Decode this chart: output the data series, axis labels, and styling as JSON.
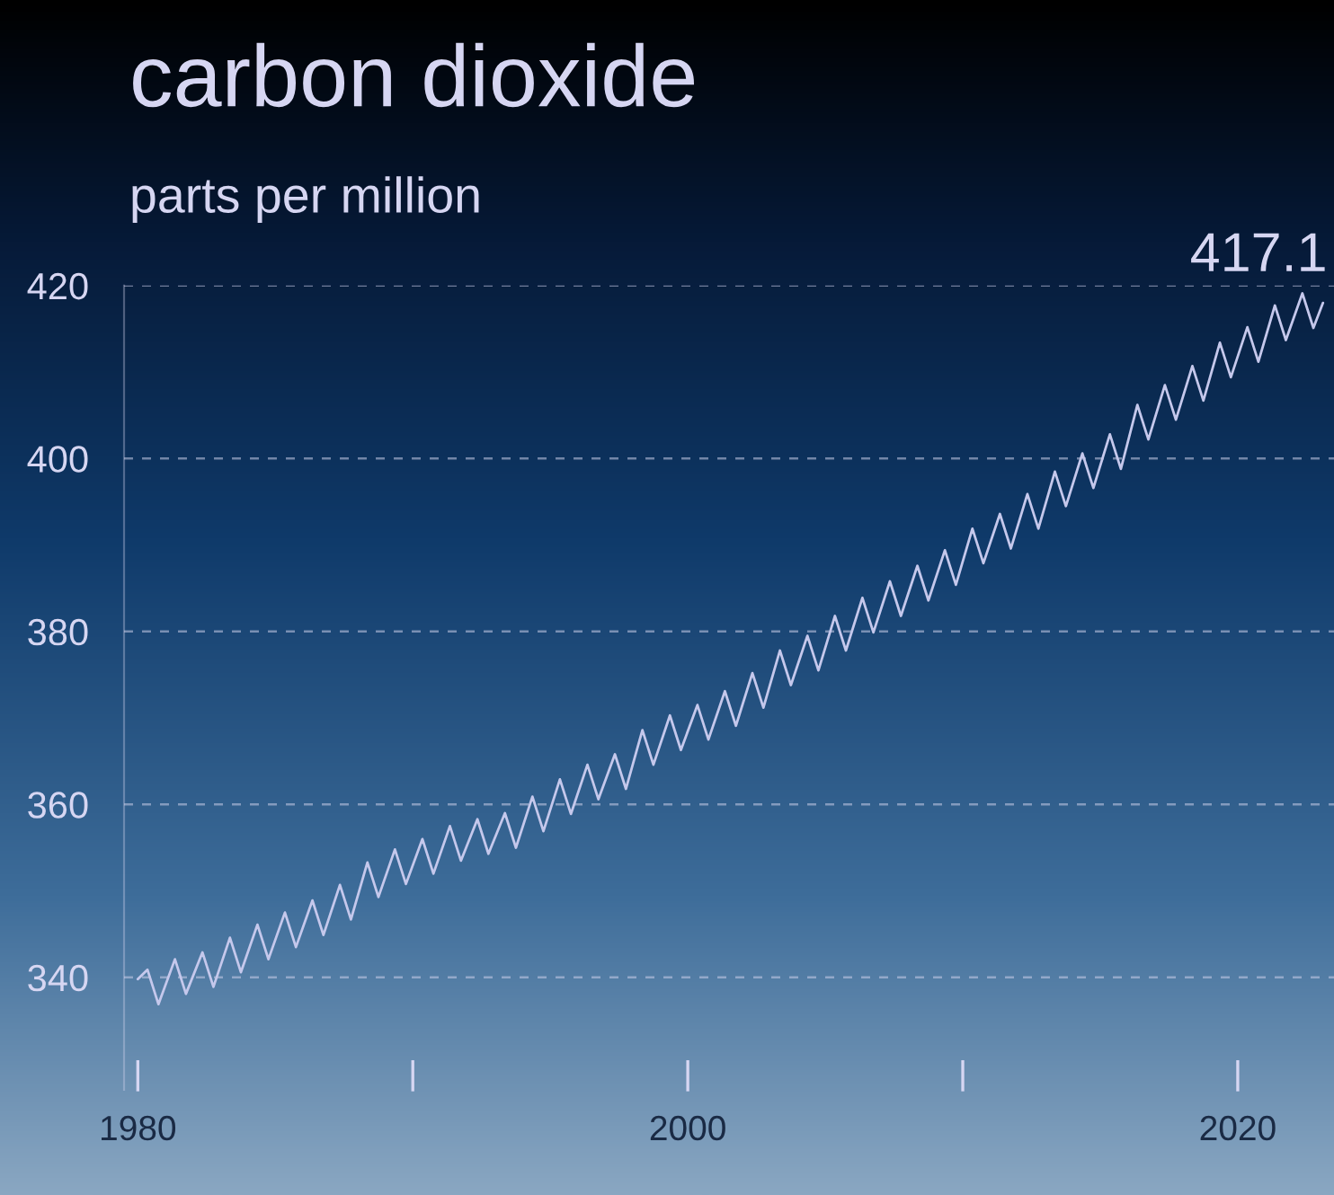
{
  "chart_data": {
    "type": "line",
    "title": "carbon dioxide",
    "subtitle": "parts per million",
    "series": [
      {
        "color": "#c5c8ec",
        "marker": "none",
        "line_style": "solid",
        "x": [
          1980.0,
          1980.35,
          1980.75,
          1981.35,
          1981.75,
          1982.35,
          1982.75,
          1983.35,
          1983.75,
          1984.35,
          1984.75,
          1985.35,
          1985.75,
          1986.35,
          1986.75,
          1987.35,
          1987.75,
          1988.35,
          1988.75,
          1989.35,
          1989.75,
          1990.35,
          1990.75,
          1991.35,
          1991.75,
          1992.35,
          1992.75,
          1993.35,
          1993.75,
          1994.35,
          1994.75,
          1995.35,
          1995.75,
          1996.35,
          1996.75,
          1997.35,
          1997.75,
          1998.35,
          1998.75,
          1999.35,
          1999.75,
          2000.35,
          2000.75,
          2001.35,
          2001.75,
          2002.35,
          2002.75,
          2003.35,
          2003.75,
          2004.35,
          2004.75,
          2005.35,
          2005.75,
          2006.35,
          2006.75,
          2007.35,
          2007.75,
          2008.35,
          2008.75,
          2009.35,
          2009.75,
          2010.35,
          2010.75,
          2011.35,
          2011.75,
          2012.35,
          2012.75,
          2013.35,
          2013.75,
          2014.35,
          2014.75,
          2015.35,
          2015.75,
          2016.35,
          2016.75,
          2017.35,
          2017.75,
          2018.35,
          2018.75,
          2019.35,
          2019.75,
          2020.35,
          2020.75,
          2021.35,
          2021.75,
          2022.35,
          2022.75,
          2023.1
        ],
        "values": [
          339.8,
          340.9,
          336.9,
          342.1,
          338.1,
          342.9,
          338.9,
          344.6,
          340.6,
          346.1,
          342.1,
          347.5,
          343.5,
          348.9,
          344.9,
          350.7,
          346.7,
          353.3,
          349.3,
          354.8,
          350.8,
          356.0,
          352.0,
          357.5,
          353.5,
          358.3,
          354.3,
          359.0,
          355.0,
          360.9,
          356.9,
          362.9,
          358.9,
          364.6,
          360.6,
          365.8,
          361.8,
          368.6,
          364.6,
          370.3,
          366.3,
          371.5,
          367.5,
          373.1,
          369.1,
          375.2,
          371.2,
          377.8,
          373.8,
          379.5,
          375.5,
          381.8,
          377.8,
          383.9,
          379.9,
          385.8,
          381.8,
          387.6,
          383.6,
          389.4,
          385.4,
          391.9,
          387.9,
          393.6,
          389.6,
          395.9,
          391.9,
          398.5,
          394.5,
          400.6,
          396.6,
          402.8,
          398.8,
          406.2,
          402.2,
          408.5,
          404.5,
          410.7,
          406.7,
          413.4,
          409.4,
          415.2,
          411.2,
          417.7,
          413.7,
          419.1,
          415.1,
          418.0
        ]
      }
    ],
    "xlim": [
      1979.5,
      2023.5
    ],
    "ylim": [
      327,
      420
    ],
    "xticks": [
      1980,
      {
        "value": 1990,
        "label": null
      },
      2000,
      {
        "value": 2010,
        "label": null
      },
      2020
    ],
    "yticks": [
      340,
      360,
      380,
      400,
      420
    ],
    "grid": "y",
    "annotations": [
      "417.1"
    ]
  }
}
